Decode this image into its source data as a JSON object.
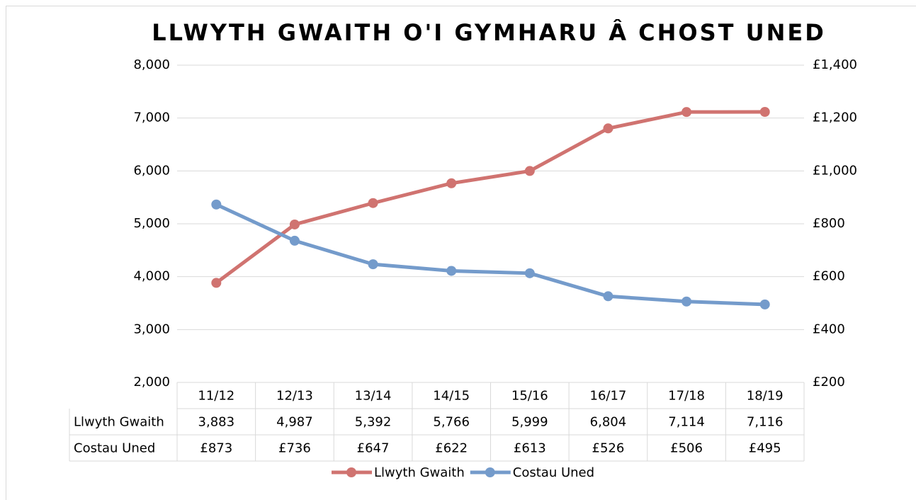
{
  "chart_data": {
    "type": "line",
    "title": "LLWYTH GWAITH O'I GYMHARU Â CHOST UNED",
    "categories": [
      "11/12",
      "12/13",
      "13/14",
      "14/15",
      "15/16",
      "16/17",
      "17/18",
      "18/19"
    ],
    "series": [
      {
        "name": "Llwyth Gwaith",
        "color": "#d07370",
        "values": [
          3883,
          4987,
          5392,
          5766,
          5999,
          6804,
          7114,
          7116
        ],
        "value_labels": [
          "3,883",
          "4,987",
          "5,392",
          "5,766",
          "5,999",
          "6,804",
          "7,114",
          "7,116"
        ]
      },
      {
        "name": "Costau Uned",
        "color": "#749bcb",
        "axis": "y2",
        "values": [
          873,
          736,
          647,
          622,
          613,
          526,
          506,
          495
        ],
        "value_labels": [
          "£873",
          "£736",
          "£647",
          "£622",
          "£613",
          "£526",
          "£506",
          "£495"
        ]
      }
    ],
    "ylim": [
      2000,
      8000
    ],
    "yticks": [
      {
        "value": 2000,
        "label": "2,000"
      },
      {
        "value": 3000,
        "label": "3,000"
      },
      {
        "value": 4000,
        "label": "4,000"
      },
      {
        "value": 5000,
        "label": "5,000"
      },
      {
        "value": 6000,
        "label": "6,000"
      },
      {
        "value": 7000,
        "label": "7,000"
      },
      {
        "value": 8000,
        "label": "8,000"
      }
    ],
    "y2lim": [
      200,
      1400
    ],
    "y2ticks": [
      {
        "value": 200,
        "label": "£200"
      },
      {
        "value": 400,
        "label": "£400"
      },
      {
        "value": 600,
        "label": "£600"
      },
      {
        "value": 800,
        "label": "£800"
      },
      {
        "value": 1000,
        "label": "£1,000"
      },
      {
        "value": 1200,
        "label": "£1,200"
      },
      {
        "value": 1400,
        "label": "£1,400"
      }
    ],
    "grid": true,
    "legend": "bottom"
  }
}
